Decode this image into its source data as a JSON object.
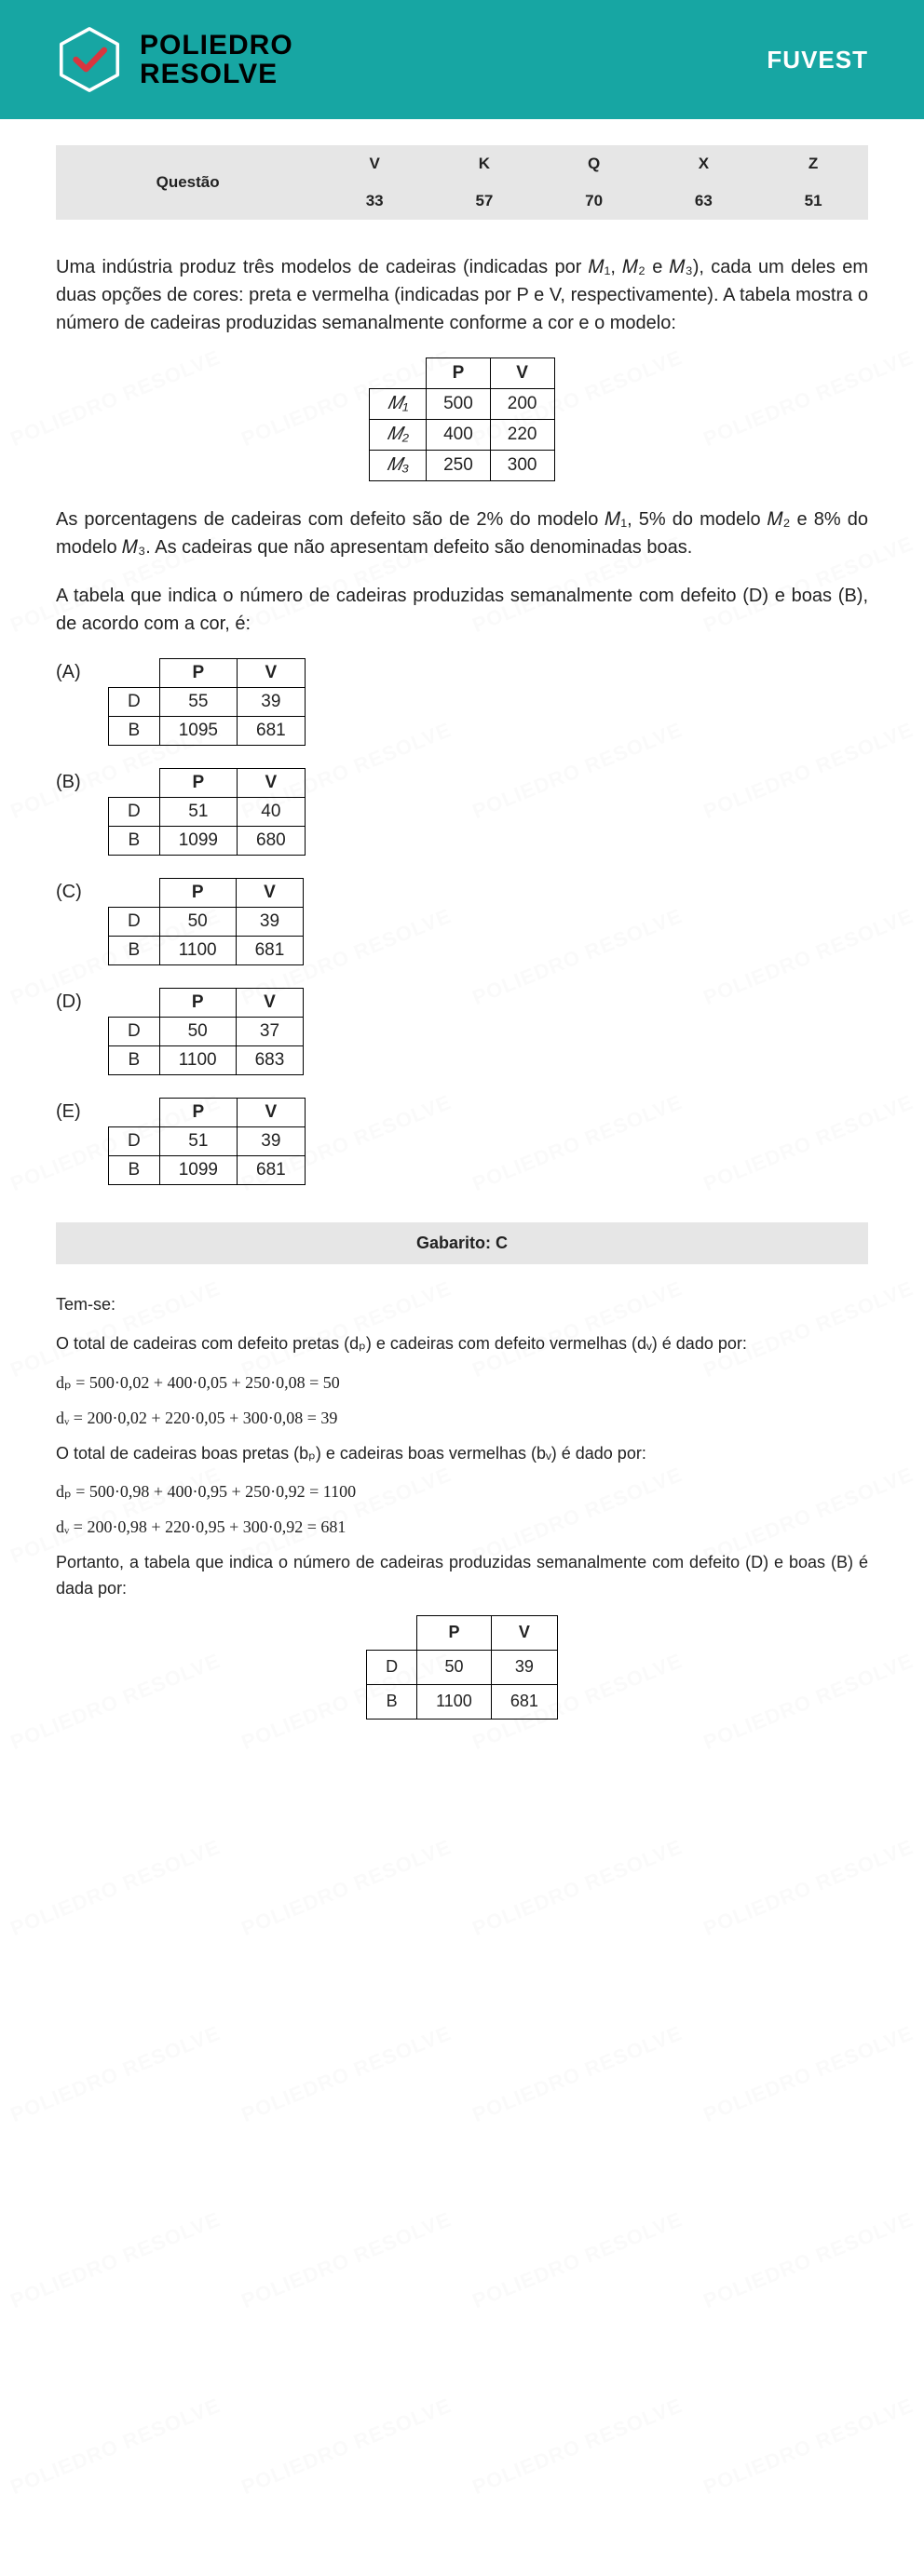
{
  "header": {
    "brand_line1": "POLIEDRO",
    "brand_line2": "RESOLVE",
    "exam": "FUVEST",
    "logo_color": "#ffffff",
    "check_color": "#d8363f",
    "bg_color": "#17a6a3"
  },
  "watermark_text": "POLIEDRO RESOLVE",
  "question_table": {
    "label": "Questão",
    "cols": [
      "V",
      "K",
      "Q",
      "X",
      "Z"
    ],
    "nums": [
      "33",
      "57",
      "70",
      "63",
      "51"
    ],
    "bg_color": "#e6e6e6"
  },
  "problem": {
    "p1": "Uma indústria produz três modelos de cadeiras (indicadas por 𝑀₁, 𝑀₂ e 𝑀₃), cada um deles em duas opções de cores: preta e vermelha (indicadas por P e V, respectivamente). A tabela mostra o número de cadeiras produzidas semanalmente conforme a cor e o modelo:",
    "p2": "As porcentagens de cadeiras com defeito são de 2% do modelo 𝑀₁, 5% do modelo 𝑀₂ e 8% do modelo 𝑀₃. As cadeiras que não apresentam defeito são denominadas boas.",
    "p3": "A tabela que indica o número de cadeiras produzidas semanalmente com defeito (D) e boas (B), de acordo com a cor, é:"
  },
  "data_table": {
    "headers": [
      "",
      "P",
      "V"
    ],
    "rows": [
      [
        "𝑀₁",
        "500",
        "200"
      ],
      [
        "𝑀₂",
        "400",
        "220"
      ],
      [
        "𝑀₃",
        "250",
        "300"
      ]
    ]
  },
  "options": {
    "headers": [
      "",
      "P",
      "V"
    ],
    "row_labels": [
      "D",
      "B"
    ],
    "items": [
      {
        "letter": "(A)",
        "vals": [
          [
            "55",
            "39"
          ],
          [
            "1095",
            "681"
          ]
        ]
      },
      {
        "letter": "(B)",
        "vals": [
          [
            "51",
            "40"
          ],
          [
            "1099",
            "680"
          ]
        ]
      },
      {
        "letter": "(C)",
        "vals": [
          [
            "50",
            "39"
          ],
          [
            "1100",
            "681"
          ]
        ]
      },
      {
        "letter": "(D)",
        "vals": [
          [
            "50",
            "37"
          ],
          [
            "1100",
            "683"
          ]
        ]
      },
      {
        "letter": "(E)",
        "vals": [
          [
            "51",
            "39"
          ],
          [
            "1099",
            "681"
          ]
        ]
      }
    ]
  },
  "answer_bar": "Gabarito: C",
  "solution": {
    "s1": "Tem-se:",
    "s2": "O total de cadeiras com defeito pretas (dₚ) e cadeiras com defeito vermelhas (dᵥ) é dado por:",
    "eq1": "dₚ = 500·0,02 + 400·0,05 + 250·0,08 = 50",
    "eq2": "dᵥ = 200·0,02 + 220·0,05 + 300·0,08 = 39",
    "s3": "O total de cadeiras boas pretas (bₚ)  e cadeiras boas vermelhas (bᵥ) é dado por:",
    "eq3": "dₚ = 500·0,98 + 400·0,95 + 250·0,92 = 1100",
    "eq4": "dᵥ = 200·0,98 + 220·0,95 + 300·0,92 = 681",
    "s4": "Portanto, a tabela que indica o número de cadeiras produzidas semanalmente com defeito (D) e boas (B) é dada por:",
    "final_headers": [
      "",
      "P",
      "V"
    ],
    "final_row_labels": [
      "D",
      "B"
    ],
    "final_vals": [
      [
        "50",
        "39"
      ],
      [
        "1100",
        "681"
      ]
    ]
  }
}
